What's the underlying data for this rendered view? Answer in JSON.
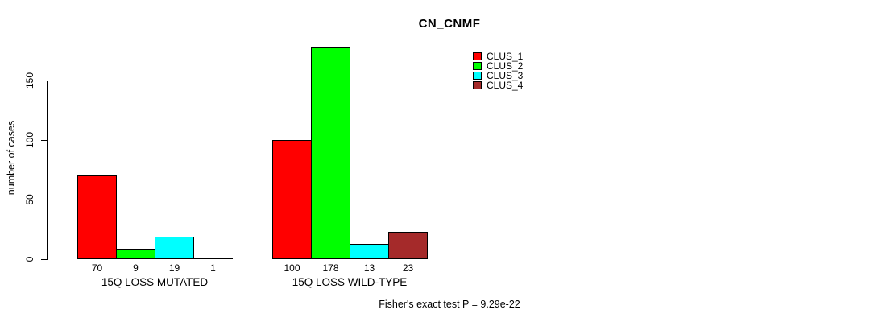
{
  "chart_data": {
    "type": "bar",
    "title": "CN_CNMF",
    "ylabel": "number of cases",
    "xlabel": "",
    "ylim": [
      0,
      185
    ],
    "yticks": [
      0,
      50,
      100,
      150
    ],
    "grid": false,
    "legend_position": "top-right",
    "categories": [
      "15Q LOSS MUTATED",
      "15Q LOSS WILD-TYPE"
    ],
    "series": [
      {
        "name": "CLUS_1",
        "color": "#ff0000",
        "values": [
          70,
          100
        ]
      },
      {
        "name": "CLUS_2",
        "color": "#00ff00",
        "values": [
          9,
          178
        ]
      },
      {
        "name": "CLUS_3",
        "color": "#00ffff",
        "values": [
          19,
          13
        ]
      },
      {
        "name": "CLUS_4",
        "color": "#a52a2a",
        "values": [
          1,
          23
        ]
      }
    ],
    "bar_value_labels_shown": true,
    "footnote": "Fisher's exact test P = 9.29e-22"
  }
}
